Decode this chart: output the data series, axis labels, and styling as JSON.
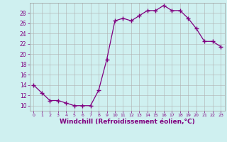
{
  "x": [
    0,
    1,
    2,
    3,
    4,
    5,
    6,
    7,
    8,
    9,
    10,
    11,
    12,
    13,
    14,
    15,
    16,
    17,
    18,
    19,
    20,
    21,
    22,
    23
  ],
  "y": [
    14,
    12.5,
    11,
    11,
    10.5,
    10,
    10,
    10,
    13,
    19,
    26.5,
    27,
    26.5,
    27.5,
    28.5,
    28.5,
    29.5,
    28.5,
    28.5,
    27,
    25,
    22.5,
    22.5,
    21.5
  ],
  "line_color": "#800080",
  "marker": "+",
  "markersize": 4,
  "linewidth": 0.9,
  "markeredgewidth": 1.0,
  "xlabel": "Windchill (Refroidissement éolien,°C)",
  "xlabel_fontsize": 6.5,
  "background_color": "#cff0f0",
  "grid_color": "#b0b0b0",
  "tick_color": "#800080",
  "label_color": "#800080",
  "ylim": [
    9,
    30
  ],
  "xlim": [
    -0.5,
    23.5
  ],
  "yticks": [
    10,
    12,
    14,
    16,
    18,
    20,
    22,
    24,
    26,
    28
  ],
  "xticks": [
    0,
    1,
    2,
    3,
    4,
    5,
    6,
    7,
    8,
    9,
    10,
    11,
    12,
    13,
    14,
    15,
    16,
    17,
    18,
    19,
    20,
    21,
    22,
    23
  ]
}
